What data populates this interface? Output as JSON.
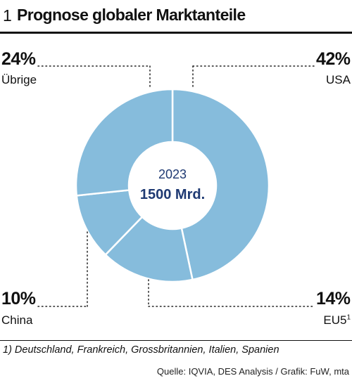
{
  "header": {
    "number": "1",
    "title": "Prognose globaler Marktanteile"
  },
  "chart_data": {
    "type": "pie",
    "variant": "donut",
    "center": {
      "year": "2023",
      "total": "1500 Mrd."
    },
    "slices": [
      {
        "label": "USA",
        "value": 42,
        "display": "42%",
        "footnote_ref": ""
      },
      {
        "label": "EU5",
        "value": 14,
        "display": "14%",
        "footnote_ref": "1"
      },
      {
        "label": "China",
        "value": 10,
        "display": "10%",
        "footnote_ref": ""
      },
      {
        "label": "Übrige",
        "value": 24,
        "display": "24%",
        "footnote_ref": ""
      }
    ],
    "slice_color": "#86bcdc",
    "separator_color": "#ffffff"
  },
  "footnote": "1) Deutschland, Frankreich, Grossbritannien, Italien, Spanien",
  "source": "Quelle: IQVIA, DES Analysis / Grafik: FuW, mta"
}
